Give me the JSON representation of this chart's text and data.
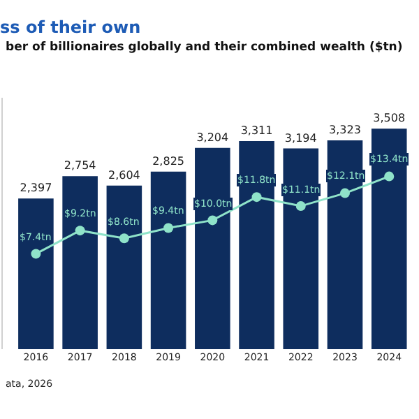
{
  "chart_data": {
    "type": "bar",
    "title": "ss of their own",
    "subtitle": "ber of billionaires globally and their combined wealth ($tn)",
    "categories": [
      "2016",
      "2017",
      "2018",
      "2019",
      "2020",
      "2021",
      "2022",
      "2023",
      "2024"
    ],
    "series": [
      {
        "color": "#0e2d5e",
        "values": [
          2397,
          2754,
          2604,
          2825,
          3204,
          3311,
          3194,
          3323,
          3508
        ],
        "value_labels": [
          "2,397",
          "2,754",
          "2,604",
          "2,825",
          "3,204",
          "3,311",
          "3,194",
          "3,323",
          "3,508"
        ]
      },
      {
        "type": "line",
        "axis": "y2",
        "color": "#8fe3c9",
        "marker": "circle",
        "values": [
          7.4,
          9.2,
          8.6,
          9.4,
          10.0,
          11.8,
          11.1,
          12.1,
          13.4
        ],
        "value_labels": [
          "$7.4tn",
          "$9.2tn",
          "$8.6tn",
          "$9.4tn",
          "$10.0tn",
          "$11.8tn",
          "$11.1tn",
          "$12.1tn",
          "$13.4tn"
        ]
      }
    ],
    "ylim": [
      0,
      4000
    ],
    "y2lim": [
      0,
      19.5
    ],
    "legend": false,
    "annotations": [
      "ata, 2026"
    ]
  }
}
